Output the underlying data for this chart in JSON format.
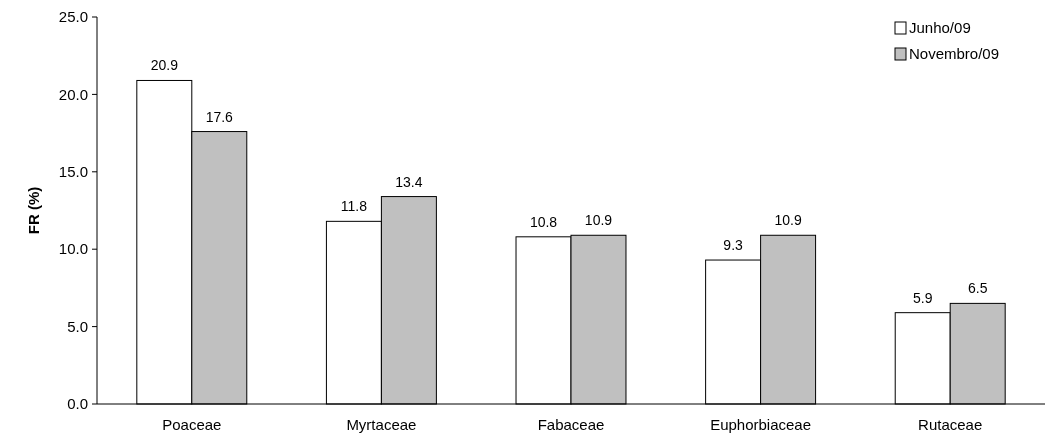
{
  "chart_data": {
    "type": "bar",
    "ylabel": "FR (%)",
    "categories": [
      "Poaceae",
      "Myrtaceae",
      "Fabaceae",
      "Euphorbiaceae",
      "Rutaceae"
    ],
    "series": [
      {
        "name": "Junho/09",
        "color": "#ffffff",
        "values": [
          20.9,
          11.8,
          10.8,
          9.3,
          5.9
        ]
      },
      {
        "name": "Novembro/09",
        "color": "#c0c0c0",
        "values": [
          17.6,
          13.4,
          10.9,
          10.9,
          6.5
        ]
      }
    ],
    "ylim": [
      0,
      25
    ],
    "yticks": [
      {
        "value": 0,
        "label": "0.0"
      },
      {
        "value": 5,
        "label": "5.0"
      },
      {
        "value": 10,
        "label": "10.0"
      },
      {
        "value": 15,
        "label": "15.0"
      },
      {
        "value": 20,
        "label": "20.0"
      },
      {
        "value": 25,
        "label": "25.0"
      }
    ],
    "data_labels": true,
    "legend": "top right",
    "grid": false
  }
}
